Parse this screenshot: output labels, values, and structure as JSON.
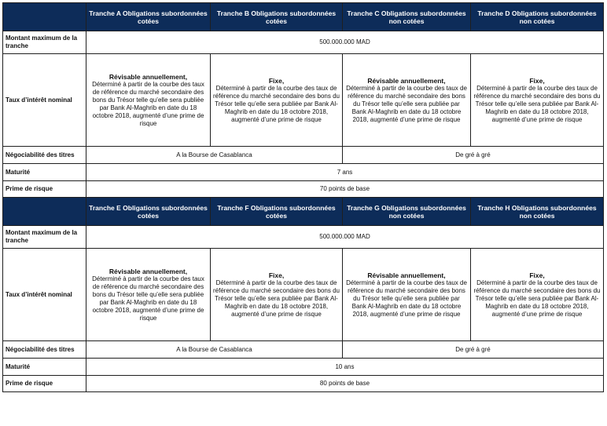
{
  "labels": {
    "montant": "Montant maximum de la tranche",
    "taux": "Taux d’intérêt nominal",
    "negociabilite": "Négociabilité des titres",
    "maturite": "Maturité",
    "prime": "Prime de risque"
  },
  "block1": {
    "tranches": [
      "Tranche A Obligations subordonnées cotées",
      "Tranche B Obligations subordonnées cotées",
      "Tranche C Obligations subordonnées non cotées",
      "Tranche D Obligations subordonnées non cotées"
    ],
    "montant": "500.000.000 MAD",
    "taux": [
      {
        "title": "Révisable annuellement,",
        "body": "Déterminé à partir de la courbe des taux de référence du marché secondaire des bons du Trésor telle qu’elle sera publiée par Bank Al-Maghrib en date du 18 octobre 2018, augmenté d’une prime de risque"
      },
      {
        "title": "Fixe,",
        "body": "Déterminé à partir de la courbe des taux de référence du marché secondaire des bons du Trésor telle qu’elle sera publiée par Bank Al-Maghrib en date du 18 octobre 2018, augmenté d’une prime de risque"
      },
      {
        "title": "Révisable annuellement,",
        "body": "Déterminé à partir de la courbe des taux de référence du marché secondaire des bons du Trésor telle qu’elle sera publiée par Bank Al-Maghrib en date du 18 octobre 2018, augmenté d’une prime de risque"
      },
      {
        "title": "Fixe,",
        "body": "Déterminé à partir de la courbe des taux de référence du marché secondaire des bons du Trésor telle qu’elle sera publiée par Bank Al-Maghrib en date du 18 octobre 2018, augmenté d’une prime de risque"
      }
    ],
    "negociabilite_cotees": "A la Bourse de Casablanca",
    "negociabilite_non_cotees": "De gré à gré",
    "maturite": "7 ans",
    "prime": "70 points de base"
  },
  "block2": {
    "tranches": [
      "Tranche E Obligations subordonnées cotées",
      "Tranche F Obligations subordonnées cotées",
      "Tranche G Obligations subordonnées non cotées",
      "Tranche H Obligations subordonnées non cotées"
    ],
    "montant": "500.000.000 MAD",
    "taux": [
      {
        "title": "Révisable annuellement,",
        "body": "Déterminé à partir de la courbe des taux de référence du marché secondaire des bons du Trésor telle qu’elle sera publiée par Bank Al-Maghrib en date du 18 octobre 2018, augmenté d’une prime de risque"
      },
      {
        "title": "Fixe,",
        "body": "Déterminé à partir de la courbe des taux de référence du marché secondaire des bons du Trésor telle qu’elle sera publiée par Bank Al-Maghrib en date du 18 octobre 2018, augmenté d’une prime de risque"
      },
      {
        "title": "Révisable annuellement,",
        "body": "Déterminé à partir de la courbe des taux de référence du marché secondaire des bons du Trésor telle qu’elle sera publiée par Bank Al-Maghrib en date du 18 octobre 2018, augmenté d’une prime de risque"
      },
      {
        "title": "Fixe,",
        "body": "Déterminé à partir de la courbe des taux de référence du marché secondaire des bons du Trésor telle qu’elle sera publiée par Bank Al-Maghrib en date du 18 octobre 2018, augmenté d’une prime de risque"
      }
    ],
    "negociabilite_cotees": "A la Bourse de Casablanca",
    "negociabilite_non_cotees": "De gré à gré",
    "maturite": "10 ans",
    "prime": "80 points de base"
  },
  "colors": {
    "header_bg": "#0d2c59",
    "header_text": "#ffffff",
    "border": "#1f1f1f"
  }
}
